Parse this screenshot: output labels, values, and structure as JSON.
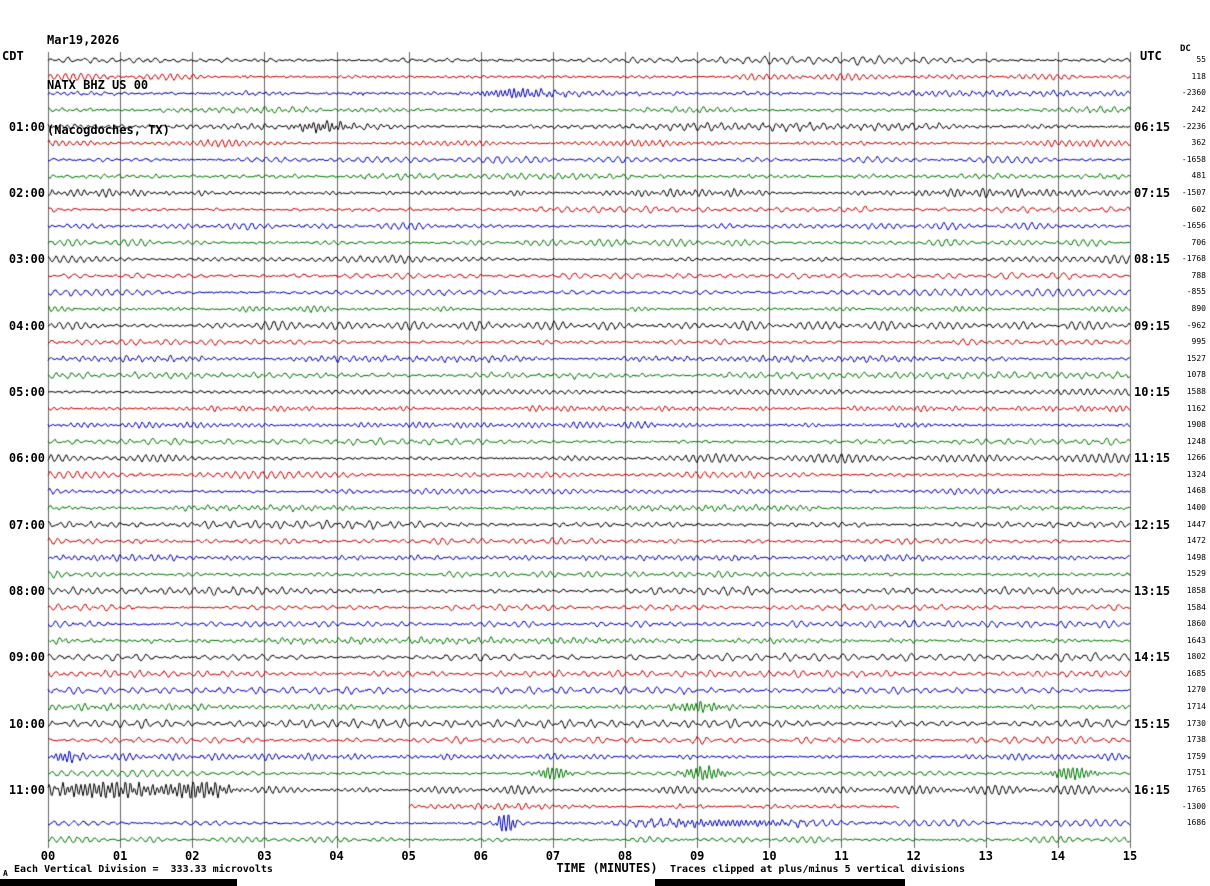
{
  "header": {
    "date": "Mar19,2026",
    "station": "NATX BHZ US 00",
    "location": "(Nacogdoches, TX)"
  },
  "axes": {
    "left_timezone": "CDT",
    "right_timezone": "UTC",
    "dc_header": "DC",
    "x_title": "TIME (MINUTES)",
    "x_ticks": [
      "00",
      "01",
      "02",
      "03",
      "04",
      "05",
      "06",
      "07",
      "08",
      "09",
      "10",
      "11",
      "12",
      "13",
      "14",
      "15"
    ]
  },
  "footer": {
    "scale_note": "Each Vertical Division =  333.33 microvolts",
    "clip_note": "Traces clipped at plus/minus 5 vertical divisions",
    "corner_mark": "A"
  },
  "colors": {
    "trace_black": "#000000",
    "trace_red": "#cc0000",
    "trace_blue": "#0000bb",
    "trace_green": "#007700",
    "grid": "#666666",
    "background": "#ffffff"
  },
  "chart_data": {
    "type": "line",
    "description": "Helicorder seismogram: 48 traces, each spanning 15 minutes, colors cycling black/red/blue/green; amplitudes are ambient noise with occasional event bursts",
    "x_range_minutes": [
      0,
      15
    ],
    "minutes_per_row": 15,
    "rows": [
      {
        "cdt": "",
        "utc": "",
        "dc": "55",
        "color": "black"
      },
      {
        "cdt": "",
        "utc": "",
        "dc": "118",
        "color": "red"
      },
      {
        "cdt": "",
        "utc": "",
        "dc": "-2360",
        "color": "blue"
      },
      {
        "cdt": "",
        "utc": "",
        "dc": "242",
        "color": "green"
      },
      {
        "cdt": "01:00",
        "utc": "06:15",
        "dc": "-2236",
        "color": "black"
      },
      {
        "cdt": "",
        "utc": "",
        "dc": "362",
        "color": "red"
      },
      {
        "cdt": "",
        "utc": "",
        "dc": "-1658",
        "color": "blue"
      },
      {
        "cdt": "",
        "utc": "",
        "dc": "481",
        "color": "green"
      },
      {
        "cdt": "02:00",
        "utc": "07:15",
        "dc": "-1507",
        "color": "black"
      },
      {
        "cdt": "",
        "utc": "",
        "dc": "602",
        "color": "red"
      },
      {
        "cdt": "",
        "utc": "",
        "dc": "-1656",
        "color": "blue"
      },
      {
        "cdt": "",
        "utc": "",
        "dc": "706",
        "color": "green"
      },
      {
        "cdt": "03:00",
        "utc": "08:15",
        "dc": "-1768",
        "color": "black"
      },
      {
        "cdt": "",
        "utc": "",
        "dc": "788",
        "color": "red"
      },
      {
        "cdt": "",
        "utc": "",
        "dc": "-855",
        "color": "blue"
      },
      {
        "cdt": "",
        "utc": "",
        "dc": "890",
        "color": "green"
      },
      {
        "cdt": "04:00",
        "utc": "09:15",
        "dc": "-962",
        "color": "black"
      },
      {
        "cdt": "",
        "utc": "",
        "dc": "995",
        "color": "red"
      },
      {
        "cdt": "",
        "utc": "",
        "dc": "1527",
        "color": "blue"
      },
      {
        "cdt": "",
        "utc": "",
        "dc": "1078",
        "color": "green"
      },
      {
        "cdt": "05:00",
        "utc": "10:15",
        "dc": "1588",
        "color": "black"
      },
      {
        "cdt": "",
        "utc": "",
        "dc": "1162",
        "color": "red"
      },
      {
        "cdt": "",
        "utc": "",
        "dc": "1908",
        "color": "blue"
      },
      {
        "cdt": "",
        "utc": "",
        "dc": "1248",
        "color": "green"
      },
      {
        "cdt": "06:00",
        "utc": "11:15",
        "dc": "1266",
        "color": "black"
      },
      {
        "cdt": "",
        "utc": "",
        "dc": "1324",
        "color": "red"
      },
      {
        "cdt": "",
        "utc": "",
        "dc": "1468",
        "color": "blue"
      },
      {
        "cdt": "",
        "utc": "",
        "dc": "1400",
        "color": "green"
      },
      {
        "cdt": "07:00",
        "utc": "12:15",
        "dc": "1447",
        "color": "black"
      },
      {
        "cdt": "",
        "utc": "",
        "dc": "1472",
        "color": "red"
      },
      {
        "cdt": "",
        "utc": "",
        "dc": "1498",
        "color": "blue"
      },
      {
        "cdt": "",
        "utc": "",
        "dc": "1529",
        "color": "green"
      },
      {
        "cdt": "08:00",
        "utc": "13:15",
        "dc": "1858",
        "color": "black"
      },
      {
        "cdt": "",
        "utc": "",
        "dc": "1584",
        "color": "red"
      },
      {
        "cdt": "",
        "utc": "",
        "dc": "1860",
        "color": "blue"
      },
      {
        "cdt": "",
        "utc": "",
        "dc": "1643",
        "color": "green"
      },
      {
        "cdt": "09:00",
        "utc": "14:15",
        "dc": "1802",
        "color": "black"
      },
      {
        "cdt": "",
        "utc": "",
        "dc": "1685",
        "color": "red"
      },
      {
        "cdt": "",
        "utc": "",
        "dc": "1270",
        "color": "blue"
      },
      {
        "cdt": "",
        "utc": "",
        "dc": "1714",
        "color": "green"
      },
      {
        "cdt": "10:00",
        "utc": "15:15",
        "dc": "1730",
        "color": "black"
      },
      {
        "cdt": "",
        "utc": "",
        "dc": "1738",
        "color": "red"
      },
      {
        "cdt": "",
        "utc": "",
        "dc": "1759",
        "color": "blue"
      },
      {
        "cdt": "",
        "utc": "",
        "dc": "1751",
        "color": "green"
      },
      {
        "cdt": "11:00",
        "utc": "16:15",
        "dc": "1765",
        "color": "black"
      },
      {
        "cdt": "",
        "utc": "",
        "dc": "-1300",
        "color": "red",
        "start": 5,
        "end": 11.8
      },
      {
        "cdt": "",
        "utc": "",
        "dc": "1686",
        "color": "blue"
      },
      {
        "cdt": "",
        "utc": "",
        "dc": "",
        "color": "green"
      }
    ],
    "events": [
      {
        "row": 2,
        "minute": 6.5,
        "amp": 4,
        "width": 0.35
      },
      {
        "row": 4,
        "minute": 3.8,
        "amp": 4,
        "width": 0.3
      },
      {
        "row": 39,
        "minute": 9.0,
        "amp": 4,
        "width": 0.25
      },
      {
        "row": 42,
        "minute": 0.25,
        "amp": 5,
        "width": 0.12
      },
      {
        "row": 43,
        "minute": 7.0,
        "amp": 6,
        "width": 0.15
      },
      {
        "row": 43,
        "minute": 9.1,
        "amp": 6,
        "width": 0.2
      },
      {
        "row": 43,
        "minute": 14.2,
        "amp": 6,
        "width": 0.2
      },
      {
        "row": 44,
        "minute": 0.8,
        "amp": 7,
        "width": 0.55
      },
      {
        "row": 44,
        "minute": 2.1,
        "amp": 7,
        "width": 0.3
      },
      {
        "row": 46,
        "minute": 6.35,
        "amp": 14,
        "width": 0.07
      },
      {
        "row": 46,
        "minute": 9.3,
        "amp": 3,
        "width": 0.9
      }
    ]
  }
}
